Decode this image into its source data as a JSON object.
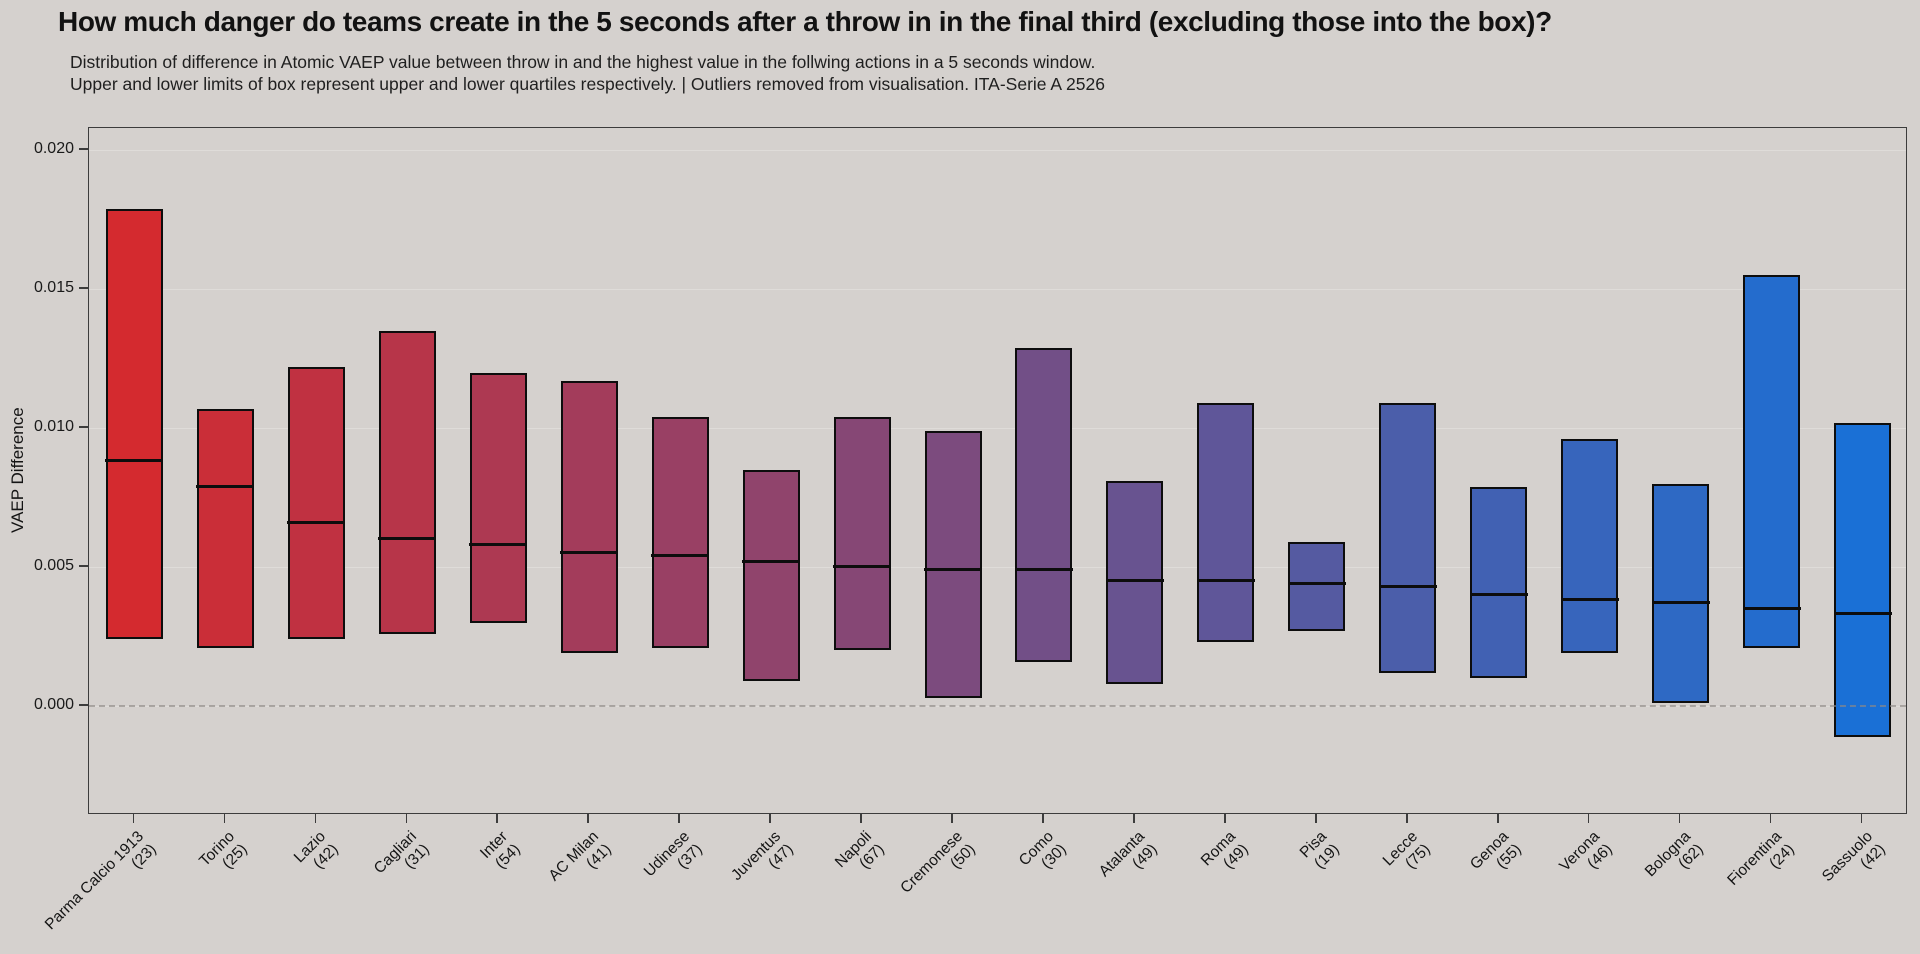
{
  "title": "How much danger do teams create in the 5 seconds after a throw in in the final third (excluding those into the box)?",
  "subtitle_line1": "Distribution of difference in Atomic VAEP value between throw in and the highest value in the follwing actions in a 5 seconds window.",
  "subtitle_line2": "Upper and lower limits of box represent upper and lower quartiles respectively. | Outliers removed from visualisation. ITA-Serie A 2526",
  "chart_data": {
    "type": "box",
    "title": "How much danger do teams create in the 5 seconds after a throw in in the final third (excluding those into the box)?",
    "ylabel": "VAEP Difference",
    "xlabel": "",
    "ylim": [
      -0.00392,
      0.0208
    ],
    "grid": true,
    "yticks": [
      0.0,
      0.005,
      0.01,
      0.015,
      0.02
    ],
    "ytick_labels": [
      "0.000",
      "0.005",
      "0.010",
      "0.015",
      "0.020"
    ],
    "zero_line_value": 0,
    "colors": {
      "background": "#d5d1ce",
      "axis": "#3c3c3c",
      "gridline": "#dfdcd9",
      "zero_line": "#8f8a86",
      "box_border": "#0d0d0d",
      "median_line": "#0d0d0d"
    },
    "teams": [
      {
        "name": "Parma Calcio 1913",
        "count": 23,
        "count_label": "(23)",
        "q1": 0.0024,
        "median": 0.0088,
        "q3": 0.0179,
        "color": "#d42a2f"
      },
      {
        "name": "Torino",
        "count": 25,
        "count_label": "(25)",
        "q1": 0.0021,
        "median": 0.0079,
        "q3": 0.0107,
        "color": "#ca2e38"
      },
      {
        "name": "Lazio",
        "count": 42,
        "count_label": "(42)",
        "q1": 0.0024,
        "median": 0.0066,
        "q3": 0.0122,
        "color": "#c03141"
      },
      {
        "name": "Cagliari",
        "count": 31,
        "count_label": "(31)",
        "q1": 0.0026,
        "median": 0.006,
        "q3": 0.0135,
        "color": "#b73549"
      },
      {
        "name": "Inter",
        "count": 54,
        "count_label": "(54)",
        "q1": 0.003,
        "median": 0.0058,
        "q3": 0.012,
        "color": "#ad3952"
      },
      {
        "name": "AC Milan",
        "count": 41,
        "count_label": "(41)",
        "q1": 0.0019,
        "median": 0.0055,
        "q3": 0.0117,
        "color": "#a33c5b"
      },
      {
        "name": "Udinese",
        "count": 37,
        "count_label": "(37)",
        "q1": 0.0021,
        "median": 0.0054,
        "q3": 0.0104,
        "color": "#994064"
      },
      {
        "name": "Juventus",
        "count": 47,
        "count_label": "(47)",
        "q1": 0.0009,
        "median": 0.0052,
        "q3": 0.0085,
        "color": "#90446c"
      },
      {
        "name": "Napoli",
        "count": 67,
        "count_label": "(67)",
        "q1": 0.002,
        "median": 0.005,
        "q3": 0.0104,
        "color": "#864775"
      },
      {
        "name": "Cremonese",
        "count": 50,
        "count_label": "(50)",
        "q1": 0.0003,
        "median": 0.0049,
        "q3": 0.0099,
        "color": "#7c4b7e"
      },
      {
        "name": "Como",
        "count": 30,
        "count_label": "(30)",
        "q1": 0.0016,
        "median": 0.0049,
        "q3": 0.0129,
        "color": "#724f87"
      },
      {
        "name": "Atalanta",
        "count": 49,
        "count_label": "(49)",
        "q1": 0.0008,
        "median": 0.0045,
        "q3": 0.0081,
        "color": "#685390"
      },
      {
        "name": "Roma",
        "count": 49,
        "count_label": "(49)",
        "q1": 0.0023,
        "median": 0.0045,
        "q3": 0.0109,
        "color": "#5f5699"
      },
      {
        "name": "Pisa",
        "count": 19,
        "count_label": "(19)",
        "q1": 0.0027,
        "median": 0.0044,
        "q3": 0.0059,
        "color": "#555aa1"
      },
      {
        "name": "Lecce",
        "count": 75,
        "count_label": "(75)",
        "q1": 0.0012,
        "median": 0.0043,
        "q3": 0.0109,
        "color": "#4b5eaa"
      },
      {
        "name": "Genoa",
        "count": 55,
        "count_label": "(55)",
        "q1": 0.001,
        "median": 0.004,
        "q3": 0.0079,
        "color": "#4161b3"
      },
      {
        "name": "Verona",
        "count": 46,
        "count_label": "(46)",
        "q1": 0.0019,
        "median": 0.0038,
        "q3": 0.0096,
        "color": "#3765bc"
      },
      {
        "name": "Bologna",
        "count": 62,
        "count_label": "(62)",
        "q1": 0.0001,
        "median": 0.0037,
        "q3": 0.008,
        "color": "#2e69c4"
      },
      {
        "name": "Fiorentina",
        "count": 24,
        "count_label": "(24)",
        "q1": 0.0021,
        "median": 0.0035,
        "q3": 0.0155,
        "color": "#246ccd"
      },
      {
        "name": "Sassuolo",
        "count": 42,
        "count_label": "(42)",
        "q1": -0.0011,
        "median": 0.0033,
        "q3": 0.0102,
        "color": "#1a70d6"
      }
    ]
  }
}
